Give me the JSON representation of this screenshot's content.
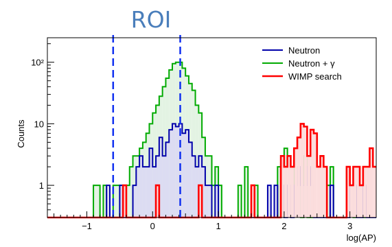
{
  "chart_data": {
    "type": "histogram",
    "annotation": "ROI",
    "xlabel": "log(AP)",
    "ylabel": "Counts",
    "x_range": [
      -1.6,
      3.4
    ],
    "y_range": [
      0.3,
      250
    ],
    "y_scale": "log",
    "grid": false,
    "legend_position": "top-right",
    "x_ticks": [
      {
        "value": -1,
        "label": "−1"
      },
      {
        "value": 0,
        "label": "0"
      },
      {
        "value": 1,
        "label": "1"
      },
      {
        "value": 2,
        "label": "2"
      },
      {
        "value": 3,
        "label": "3"
      }
    ],
    "y_ticks": [
      {
        "value": 1,
        "label": "1"
      },
      {
        "value": 10,
        "label": "10"
      },
      {
        "value": 100,
        "label": "10²"
      }
    ],
    "roi_bounds": [
      -0.6,
      0.42
    ],
    "bin_edges_start": -1.6,
    "bin_width": 0.05,
    "series": [
      {
        "name": "Neutron + γ",
        "color": "#00aa00",
        "fill": "#e3f3e3",
        "counts": [
          0,
          0,
          0,
          0,
          0,
          0,
          0,
          0,
          0,
          0,
          0,
          0,
          0,
          0,
          1,
          1,
          0,
          1,
          0,
          0,
          1,
          1,
          1,
          0,
          1,
          2,
          3,
          3,
          4,
          5,
          7,
          10,
          15,
          20,
          28,
          40,
          55,
          75,
          95,
          100,
          100,
          80,
          60,
          45,
          35,
          20,
          15,
          6,
          3,
          3,
          1,
          2,
          1,
          0,
          0,
          0,
          0,
          0,
          1,
          0,
          2,
          0,
          0,
          1,
          0,
          0,
          0,
          0,
          0,
          0,
          2,
          3,
          4,
          3,
          2,
          1,
          2,
          0,
          3,
          0,
          0,
          0,
          0,
          0,
          0,
          1,
          2,
          0,
          0,
          0,
          0,
          2,
          1,
          0,
          0,
          0,
          0,
          0,
          0,
          0
        ]
      },
      {
        "name": "Neutron",
        "color": "#0000aa",
        "fill": "#dcdcf2",
        "counts": [
          0,
          0,
          0,
          0,
          0,
          0,
          0,
          0,
          0,
          0,
          0,
          0,
          0,
          0,
          0,
          0,
          0,
          0,
          1,
          0,
          0,
          0,
          1,
          0,
          0,
          0,
          1,
          2,
          3,
          2,
          2,
          4,
          2,
          3,
          6,
          3,
          5,
          8,
          10,
          9,
          10,
          7,
          8,
          5,
          3,
          2,
          3,
          2,
          1,
          1,
          0,
          1,
          0,
          0,
          0,
          0,
          0,
          0,
          0,
          0,
          0,
          0,
          0,
          0,
          0,
          0,
          0,
          1,
          0,
          1,
          0,
          1,
          0,
          1,
          0,
          1,
          2,
          1,
          1,
          2,
          1,
          0,
          0,
          0,
          0,
          0,
          1,
          0,
          0,
          0,
          0,
          0,
          1,
          1,
          0,
          0,
          1,
          0,
          0,
          0
        ]
      },
      {
        "name": "WIMP search",
        "color": "#ff0000",
        "fill": "#fbdddd",
        "counts": [
          0,
          0,
          0,
          0,
          0,
          0,
          0,
          0,
          0,
          0,
          0,
          0,
          0,
          0,
          0,
          0,
          0,
          0,
          0,
          0,
          0,
          0,
          0,
          1,
          0,
          0,
          0,
          0,
          0,
          0,
          0,
          0,
          0,
          1,
          0,
          0,
          0,
          0,
          0,
          0,
          0,
          0,
          0,
          0,
          0,
          0,
          1,
          0,
          0,
          0,
          0,
          0,
          0,
          0,
          0,
          0,
          0,
          0,
          0,
          0,
          0,
          0,
          1,
          0,
          0,
          0,
          0,
          0,
          0,
          0,
          0,
          3,
          2,
          3,
          2,
          4,
          6,
          10,
          9,
          3,
          8,
          7,
          2,
          3,
          2,
          0,
          0,
          0,
          0,
          0,
          0,
          2,
          1,
          2,
          2,
          1,
          2,
          2,
          4,
          2
        ]
      }
    ]
  }
}
